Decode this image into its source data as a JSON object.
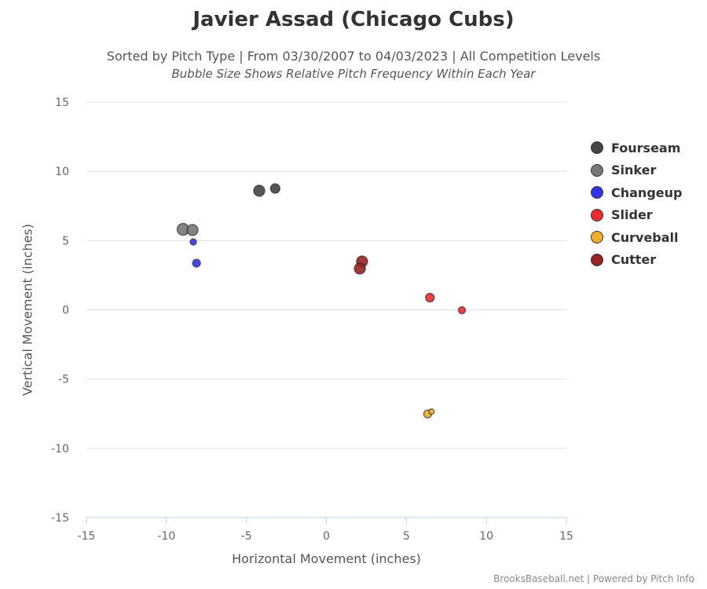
{
  "chart_data": {
    "type": "scatter",
    "title": "Javier Assad (Chicago Cubs)",
    "subtitle": "Sorted by Pitch Type | From 03/30/2007 to 04/03/2023 | All Competition Levels",
    "subtitle2": "Bubble Size Shows Relative Pitch Frequency Within Each Year",
    "xlabel": "Horizontal Movement (inches)",
    "ylabel": "Vertical Movement (inches)",
    "xlim": [
      -15,
      15
    ],
    "ylim": [
      -15,
      15
    ],
    "xticks": [
      "-15",
      "-10",
      "-5",
      "0",
      "5",
      "10",
      "15"
    ],
    "yticks": [
      "15",
      "10",
      "5",
      "0",
      "-5",
      "-10",
      "-15"
    ],
    "grid": "horizontal",
    "legend_position": "right",
    "credits": "BrooksBaseball.net | Powered by Pitch Info",
    "series": [
      {
        "name": "Fourseam",
        "color": "#444444",
        "points": [
          {
            "x": -4.2,
            "y": 8.6,
            "size": 7
          },
          {
            "x": -3.2,
            "y": 8.76,
            "size": 6
          }
        ]
      },
      {
        "name": "Sinker",
        "color": "#777777",
        "points": [
          {
            "x": -8.96,
            "y": 5.81,
            "size": 7.5
          },
          {
            "x": -8.37,
            "y": 5.76,
            "size": 7
          }
        ]
      },
      {
        "name": "Changeup",
        "color": "#3333ee",
        "points": [
          {
            "x": -8.32,
            "y": 4.9,
            "size": 4
          },
          {
            "x": -8.12,
            "y": 3.37,
            "size": 5
          }
        ]
      },
      {
        "name": "Slider",
        "color": "#ee2a2a",
        "points": [
          {
            "x": 6.47,
            "y": 0.88,
            "size": 5.5
          },
          {
            "x": 8.47,
            "y": -0.03,
            "size": 4.5
          }
        ]
      },
      {
        "name": "Curveball",
        "color": "#f2b02a",
        "points": [
          {
            "x": 6.33,
            "y": -7.52,
            "size": 5
          },
          {
            "x": 6.57,
            "y": -7.35,
            "size": 3.5
          }
        ]
      },
      {
        "name": "Cutter",
        "color": "#992222",
        "points": [
          {
            "x": 2.23,
            "y": 3.49,
            "size": 7
          },
          {
            "x": 2.09,
            "y": 2.98,
            "size": 7
          }
        ]
      }
    ]
  }
}
